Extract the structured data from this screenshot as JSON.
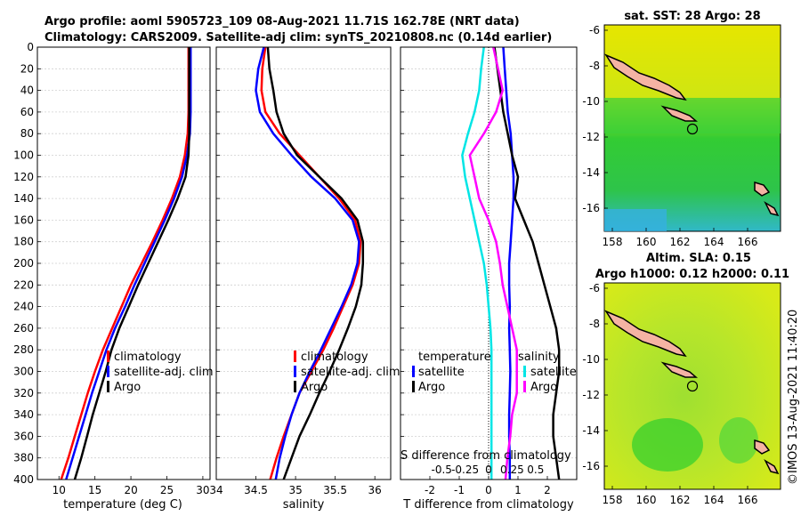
{
  "header": {
    "title_line1": "Argo profile: aoml 5905723_109 08-Aug-2021 11.71S 162.78E (NRT data)",
    "title_line2": "Climatology: CARS2009. Satellite-adj clim: synTS_20210808.nc (0.14d earlier)"
  },
  "colors": {
    "climatology": "#ff0000",
    "satellite": "#0000ff",
    "argo": "#000000",
    "temp_sat_diff": "#00e5e5",
    "sal_argo_diff": "#ff00ff",
    "land": "#f5b3a3"
  },
  "chart_data": [
    {
      "type": "line",
      "name": "temperature",
      "xlabel": "temperature (deg C)",
      "xlim": [
        7,
        31
      ],
      "xticks": [
        10,
        15,
        20,
        25,
        30
      ],
      "ylim": [
        0,
        400
      ],
      "yticks": [
        0,
        20,
        40,
        60,
        80,
        100,
        120,
        140,
        160,
        180,
        200,
        220,
        240,
        260,
        280,
        300,
        320,
        340,
        360,
        380,
        400
      ],
      "legend": [
        "climatology",
        "satellite-adj. clim",
        "Argo"
      ],
      "series": [
        {
          "name": "climatology",
          "points": [
            [
              28,
              0
            ],
            [
              28,
              40
            ],
            [
              28,
              60
            ],
            [
              27.9,
              80
            ],
            [
              27.5,
              100
            ],
            [
              26.8,
              120
            ],
            [
              25.7,
              140
            ],
            [
              24.4,
              160
            ],
            [
              23,
              180
            ],
            [
              21.5,
              200
            ],
            [
              20,
              220
            ],
            [
              18.7,
              240
            ],
            [
              17.4,
              260
            ],
            [
              16.1,
              280
            ],
            [
              15,
              300
            ],
            [
              14,
              320
            ],
            [
              13.1,
              340
            ],
            [
              12.2,
              360
            ],
            [
              11.3,
              380
            ],
            [
              10.3,
              400
            ]
          ]
        },
        {
          "name": "satellite-adj. clim",
          "points": [
            [
              28.3,
              0
            ],
            [
              28.3,
              40
            ],
            [
              28.3,
              60
            ],
            [
              28.2,
              80
            ],
            [
              27.8,
              100
            ],
            [
              27.1,
              120
            ],
            [
              26,
              140
            ],
            [
              24.7,
              160
            ],
            [
              23.3,
              180
            ],
            [
              21.9,
              200
            ],
            [
              20.5,
              220
            ],
            [
              19.2,
              240
            ],
            [
              17.8,
              260
            ],
            [
              16.6,
              280
            ],
            [
              15.6,
              300
            ],
            [
              14.6,
              320
            ],
            [
              13.7,
              340
            ],
            [
              12.8,
              360
            ],
            [
              11.9,
              380
            ],
            [
              11,
              400
            ]
          ]
        },
        {
          "name": "Argo",
          "points": [
            [
              28.1,
              0
            ],
            [
              28.1,
              40
            ],
            [
              28.1,
              60
            ],
            [
              28.1,
              80
            ],
            [
              28,
              100
            ],
            [
              27.6,
              120
            ],
            [
              26.5,
              140
            ],
            [
              25.2,
              160
            ],
            [
              23.8,
              180
            ],
            [
              22.4,
              200
            ],
            [
              21,
              220
            ],
            [
              19.7,
              240
            ],
            [
              18.4,
              260
            ],
            [
              17.3,
              280
            ],
            [
              16.5,
              300
            ],
            [
              15.6,
              320
            ],
            [
              14.7,
              340
            ],
            [
              13.9,
              360
            ],
            [
              13.1,
              380
            ],
            [
              12.2,
              400
            ]
          ]
        }
      ]
    },
    {
      "type": "line",
      "name": "salinity",
      "xlabel": "salinity",
      "xlim": [
        34,
        36.2
      ],
      "xticks": [
        34,
        34.5,
        35,
        35.5,
        36
      ],
      "ylim": [
        0,
        400
      ],
      "legend": [
        "climatology",
        "satellite-adj. clim",
        "Argo"
      ],
      "series": [
        {
          "name": "climatology",
          "points": [
            [
              34.62,
              0
            ],
            [
              34.58,
              20
            ],
            [
              34.57,
              40
            ],
            [
              34.62,
              60
            ],
            [
              34.8,
              80
            ],
            [
              35.05,
              100
            ],
            [
              35.3,
              120
            ],
            [
              35.55,
              140
            ],
            [
              35.75,
              160
            ],
            [
              35.82,
              180
            ],
            [
              35.8,
              200
            ],
            [
              35.72,
              220
            ],
            [
              35.6,
              240
            ],
            [
              35.48,
              260
            ],
            [
              35.35,
              280
            ],
            [
              35.2,
              300
            ],
            [
              35.05,
              320
            ],
            [
              34.95,
              340
            ],
            [
              34.85,
              360
            ],
            [
              34.76,
              380
            ],
            [
              34.68,
              400
            ]
          ]
        },
        {
          "name": "satellite-adj. clim",
          "points": [
            [
              34.6,
              0
            ],
            [
              34.53,
              20
            ],
            [
              34.5,
              40
            ],
            [
              34.55,
              60
            ],
            [
              34.72,
              80
            ],
            [
              34.95,
              100
            ],
            [
              35.2,
              120
            ],
            [
              35.5,
              140
            ],
            [
              35.72,
              160
            ],
            [
              35.8,
              180
            ],
            [
              35.78,
              200
            ],
            [
              35.7,
              220
            ],
            [
              35.58,
              240
            ],
            [
              35.45,
              260
            ],
            [
              35.32,
              280
            ],
            [
              35.18,
              300
            ],
            [
              35.05,
              320
            ],
            [
              34.95,
              340
            ],
            [
              34.87,
              360
            ],
            [
              34.8,
              380
            ],
            [
              34.75,
              400
            ]
          ]
        },
        {
          "name": "Argo",
          "points": [
            [
              34.65,
              0
            ],
            [
              34.67,
              20
            ],
            [
              34.72,
              40
            ],
            [
              34.76,
              60
            ],
            [
              34.85,
              80
            ],
            [
              35.02,
              100
            ],
            [
              35.3,
              120
            ],
            [
              35.58,
              140
            ],
            [
              35.78,
              160
            ],
            [
              35.85,
              180
            ],
            [
              35.85,
              200
            ],
            [
              35.83,
              220
            ],
            [
              35.76,
              240
            ],
            [
              35.66,
              260
            ],
            [
              35.55,
              280
            ],
            [
              35.43,
              300
            ],
            [
              35.3,
              320
            ],
            [
              35.18,
              340
            ],
            [
              35.05,
              360
            ],
            [
              34.95,
              380
            ],
            [
              34.85,
              400
            ]
          ]
        }
      ]
    },
    {
      "type": "line",
      "name": "difference from climatology",
      "xlabel": "T difference from climatology",
      "xlim": [
        -3,
        3
      ],
      "xticks": [
        -2,
        -1,
        0,
        1,
        2
      ],
      "sal_axis_label": "S difference from climatology",
      "sal_ticks": [
        "-0.5",
        "-0.25",
        "0",
        "0.25",
        "0.5"
      ],
      "ylim": [
        0,
        400
      ],
      "legend_temperature": [
        "temperature",
        "satellite",
        "Argo"
      ],
      "legend_salinity": [
        "salinity",
        "satellite",
        "Argo"
      ],
      "series": [
        {
          "name": "T satellite",
          "points": [
            [
              0.5,
              0
            ],
            [
              0.55,
              20
            ],
            [
              0.6,
              40
            ],
            [
              0.65,
              60
            ],
            [
              0.75,
              80
            ],
            [
              0.8,
              100
            ],
            [
              0.85,
              120
            ],
            [
              0.85,
              140
            ],
            [
              0.8,
              160
            ],
            [
              0.75,
              180
            ],
            [
              0.7,
              200
            ],
            [
              0.7,
              220
            ],
            [
              0.72,
              240
            ],
            [
              0.7,
              260
            ],
            [
              0.72,
              280
            ],
            [
              0.74,
              300
            ],
            [
              0.72,
              320
            ],
            [
              0.7,
              340
            ],
            [
              0.7,
              360
            ],
            [
              0.72,
              380
            ],
            [
              0.72,
              400
            ]
          ]
        },
        {
          "name": "T Argo",
          "points": [
            [
              0.2,
              0
            ],
            [
              0.4,
              40
            ],
            [
              0.5,
              60
            ],
            [
              0.65,
              80
            ],
            [
              0.8,
              100
            ],
            [
              1.0,
              120
            ],
            [
              0.9,
              140
            ],
            [
              1.2,
              160
            ],
            [
              1.5,
              180
            ],
            [
              1.7,
              200
            ],
            [
              1.9,
              220
            ],
            [
              2.1,
              240
            ],
            [
              2.3,
              260
            ],
            [
              2.4,
              280
            ],
            [
              2.4,
              300
            ],
            [
              2.3,
              320
            ],
            [
              2.2,
              340
            ],
            [
              2.2,
              360
            ],
            [
              2.3,
              380
            ],
            [
              2.4,
              400
            ]
          ]
        },
        {
          "name": "S satellite",
          "points": [
            [
              -0.05,
              0
            ],
            [
              -0.08,
              20
            ],
            [
              -0.1,
              40
            ],
            [
              -0.15,
              60
            ],
            [
              -0.22,
              80
            ],
            [
              -0.28,
              100
            ],
            [
              -0.25,
              120
            ],
            [
              -0.2,
              140
            ],
            [
              -0.15,
              160
            ],
            [
              -0.1,
              180
            ],
            [
              -0.05,
              200
            ],
            [
              -0.02,
              220
            ],
            [
              0.0,
              240
            ],
            [
              0.02,
              260
            ],
            [
              0.03,
              280
            ],
            [
              0.03,
              300
            ],
            [
              0.03,
              320
            ],
            [
              0.03,
              340
            ],
            [
              0.03,
              360
            ],
            [
              0.03,
              380
            ],
            [
              0.03,
              400
            ]
          ]
        },
        {
          "name": "S Argo",
          "points": [
            [
              0.05,
              0
            ],
            [
              0.1,
              20
            ],
            [
              0.15,
              40
            ],
            [
              0.08,
              60
            ],
            [
              -0.05,
              80
            ],
            [
              -0.2,
              100
            ],
            [
              -0.15,
              120
            ],
            [
              -0.1,
              140
            ],
            [
              0.0,
              160
            ],
            [
              0.08,
              180
            ],
            [
              0.12,
              200
            ],
            [
              0.15,
              220
            ],
            [
              0.2,
              240
            ],
            [
              0.25,
              260
            ],
            [
              0.3,
              280
            ],
            [
              0.3,
              300
            ],
            [
              0.3,
              320
            ],
            [
              0.25,
              340
            ],
            [
              0.23,
              360
            ],
            [
              0.2,
              380
            ],
            [
              0.18,
              400
            ]
          ]
        }
      ]
    }
  ],
  "maps": {
    "sst_title": "sat. SST: 28 Argo: 28",
    "sla_title_line1": "Altim. SLA: 0.15",
    "sla_title_line2": "Argo h1000: 0.12 h2000: 0.11",
    "lon_ticks": [
      "158",
      "160",
      "162",
      "164",
      "166"
    ],
    "lat_ticks": [
      "-6",
      "-8",
      "-10",
      "-12",
      "-14",
      "-16"
    ]
  },
  "footer": {
    "credit": "©IMOS 13-Aug-2021 11:40:20"
  }
}
